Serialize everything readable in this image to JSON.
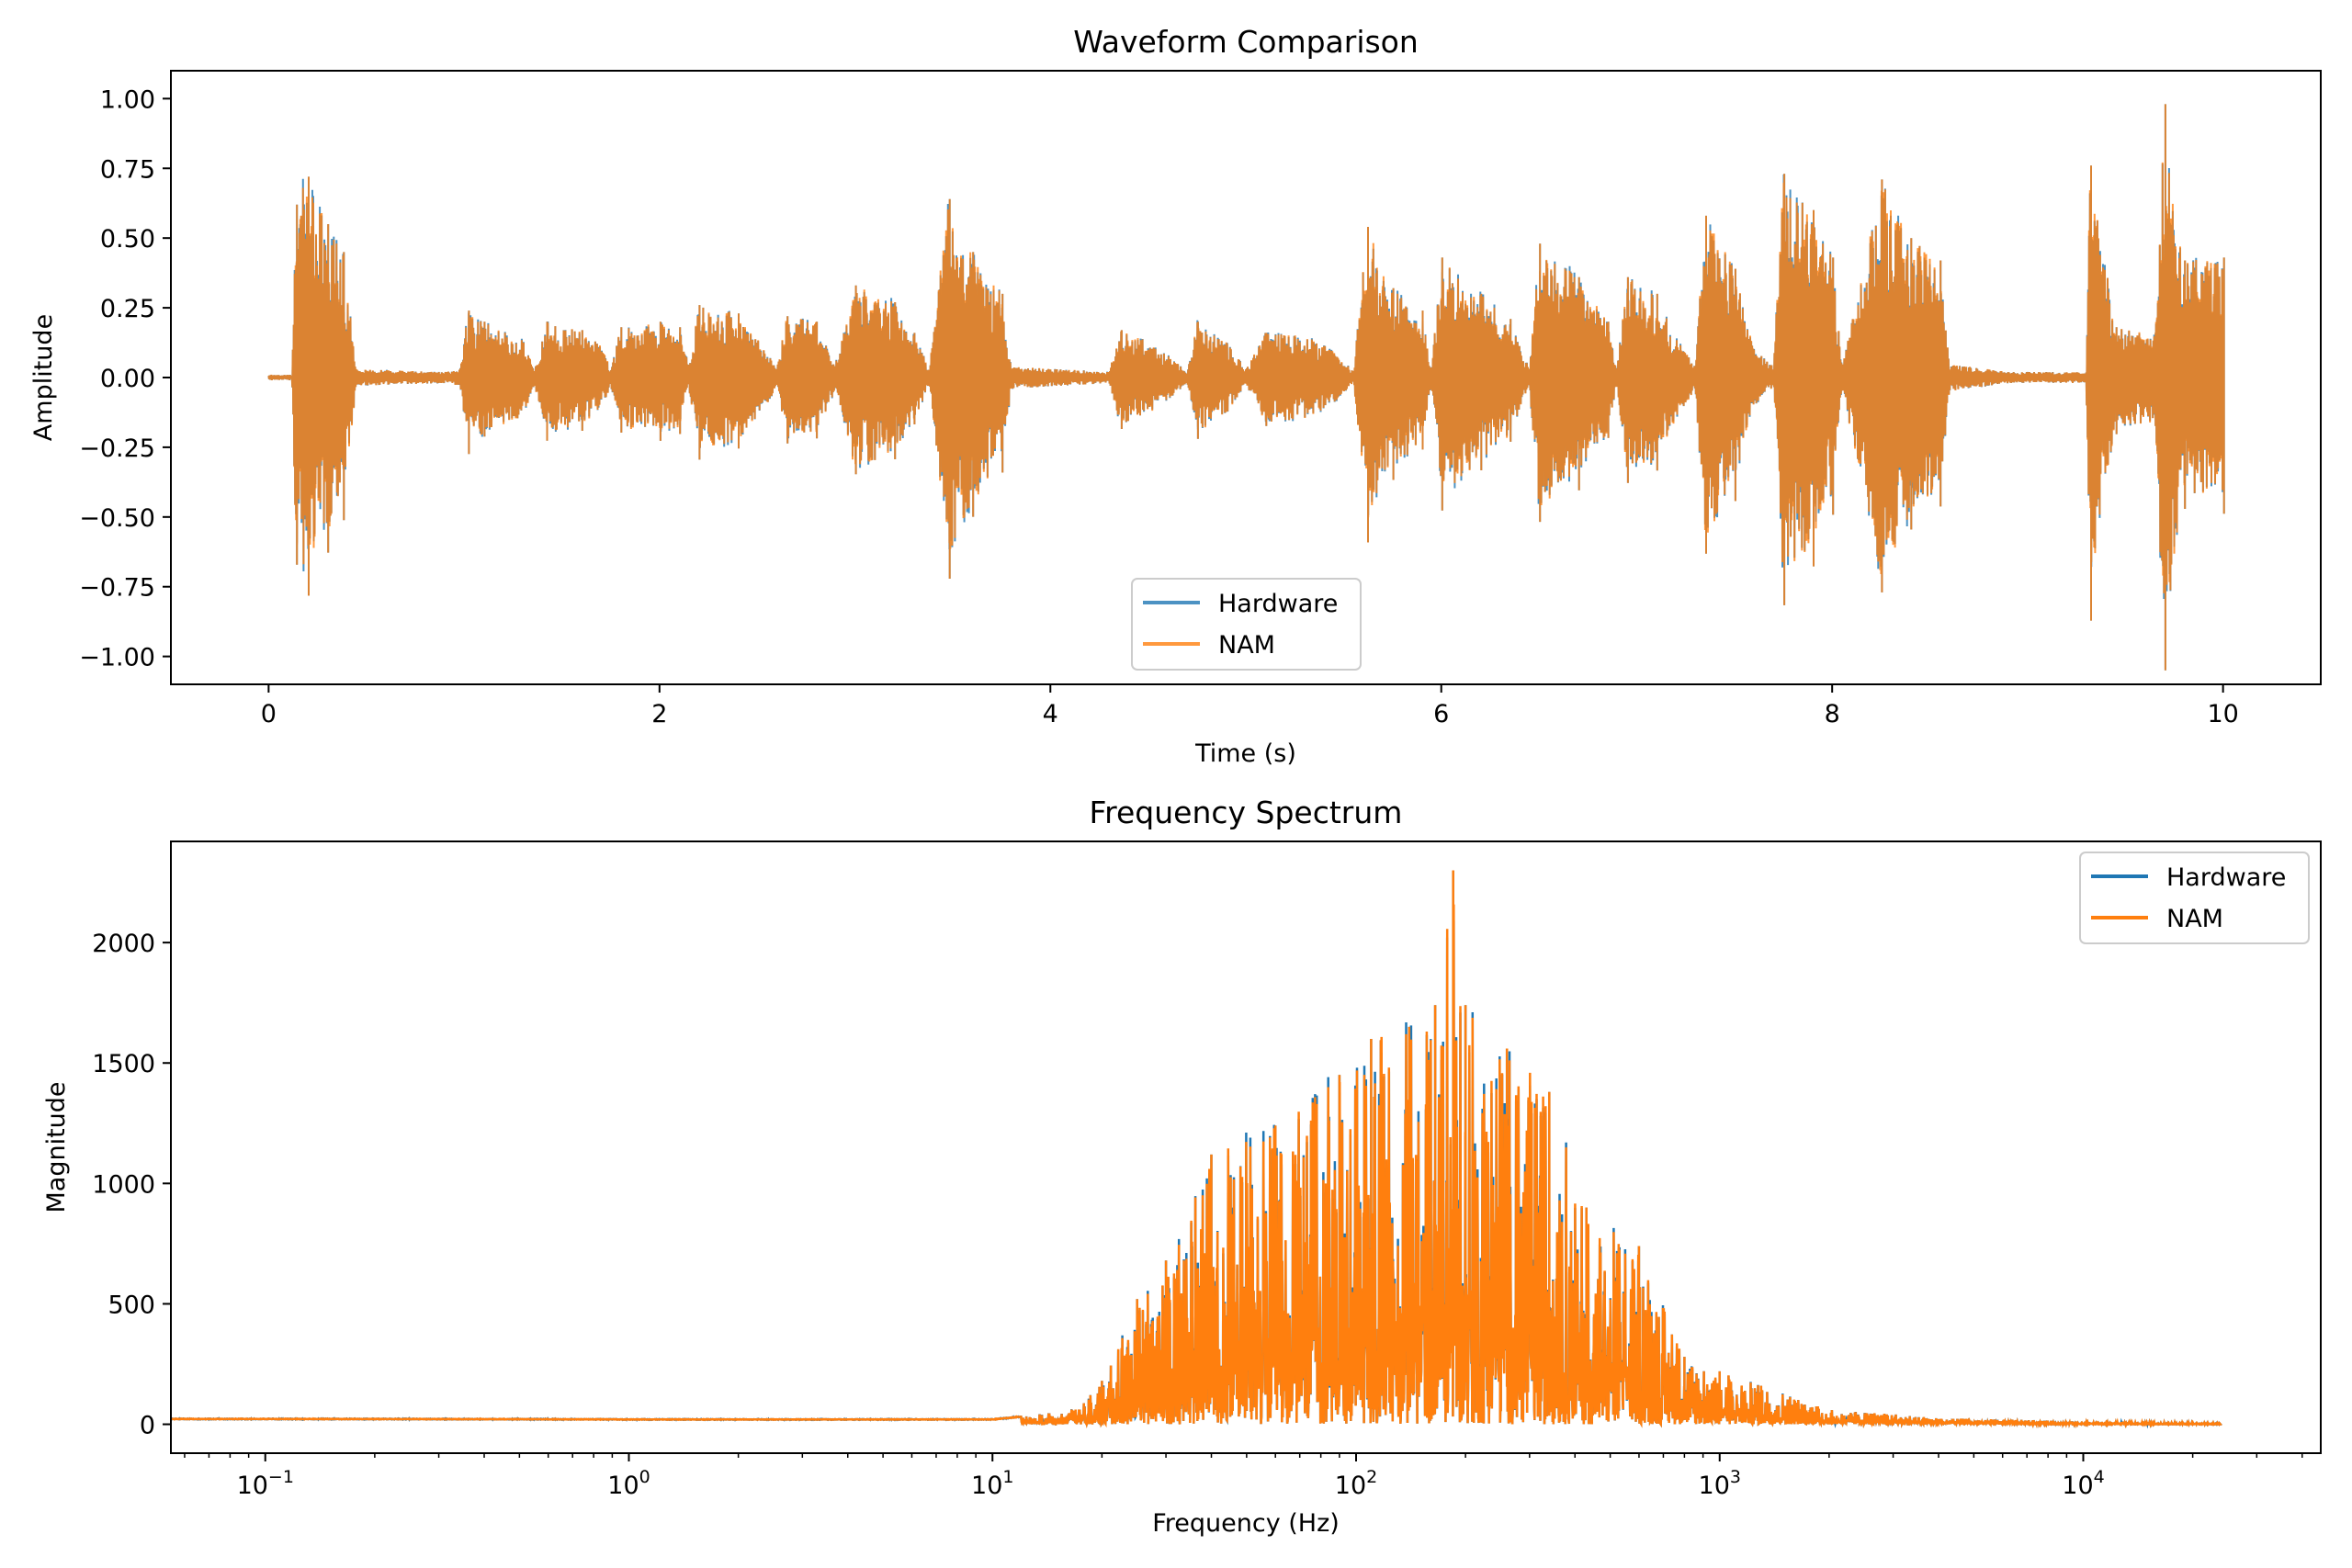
{
  "chart_data": [
    {
      "type": "line",
      "title": "Waveform Comparison",
      "xlabel": "Time (s)",
      "ylabel": "Amplitude",
      "xlim": [
        -0.5,
        10.5
      ],
      "ylim": [
        -1.1,
        1.1
      ],
      "xticks": [
        0,
        2,
        4,
        6,
        8,
        10
      ],
      "xtick_labels": [
        "0",
        "2",
        "4",
        "6",
        "8",
        "10"
      ],
      "yticks": [
        1.0,
        0.75,
        0.5,
        0.25,
        0.0,
        -0.25,
        -0.5,
        -0.75,
        -1.0
      ],
      "ytick_labels": [
        "1.00",
        "0.75",
        "0.50",
        "0.25",
        "0.00",
        "−0.25",
        "−0.50",
        "−0.75",
        "−1.00"
      ],
      "legend_position": "lower-center",
      "series": [
        {
          "name": "Hardware",
          "color": "#1f77b4",
          "style": "dense audio waveform, 0-10 s"
        },
        {
          "name": "NAM",
          "color": "#ff7f0e",
          "style": "dense audio waveform, 0-10 s"
        }
      ],
      "envelope": [
        [
          0.0,
          0.01
        ],
        [
          0.12,
          0.01
        ],
        [
          0.14,
          0.62
        ],
        [
          0.2,
          0.72
        ],
        [
          0.3,
          0.55
        ],
        [
          0.38,
          0.45
        ],
        [
          0.45,
          0.03
        ],
        [
          0.9,
          0.02
        ],
        [
          0.98,
          0.03
        ],
        [
          1.02,
          0.24
        ],
        [
          1.1,
          0.2
        ],
        [
          1.3,
          0.14
        ],
        [
          1.36,
          0.03
        ],
        [
          1.42,
          0.2
        ],
        [
          1.6,
          0.17
        ],
        [
          1.7,
          0.12
        ],
        [
          1.75,
          0.03
        ],
        [
          1.8,
          0.18
        ],
        [
          2.0,
          0.2
        ],
        [
          2.1,
          0.18
        ],
        [
          2.15,
          0.04
        ],
        [
          2.2,
          0.26
        ],
        [
          2.4,
          0.23
        ],
        [
          2.55,
          0.1
        ],
        [
          2.6,
          0.03
        ],
        [
          2.65,
          0.22
        ],
        [
          2.8,
          0.2
        ],
        [
          2.9,
          0.05
        ],
        [
          3.0,
          0.33
        ],
        [
          3.2,
          0.27
        ],
        [
          3.3,
          0.16
        ],
        [
          3.38,
          0.03
        ],
        [
          3.48,
          0.64
        ],
        [
          3.6,
          0.45
        ],
        [
          3.75,
          0.3
        ],
        [
          3.8,
          0.04
        ],
        [
          4.3,
          0.02
        ],
        [
          4.36,
          0.17
        ],
        [
          4.5,
          0.13
        ],
        [
          4.6,
          0.08
        ],
        [
          4.7,
          0.02
        ],
        [
          4.75,
          0.2
        ],
        [
          4.9,
          0.13
        ],
        [
          5.0,
          0.03
        ],
        [
          5.1,
          0.16
        ],
        [
          5.3,
          0.15
        ],
        [
          5.45,
          0.1
        ],
        [
          5.55,
          0.02
        ],
        [
          5.62,
          0.54
        ],
        [
          5.75,
          0.32
        ],
        [
          5.9,
          0.24
        ],
        [
          5.95,
          0.03
        ],
        [
          6.0,
          0.43
        ],
        [
          6.2,
          0.3
        ],
        [
          6.35,
          0.21
        ],
        [
          6.45,
          0.03
        ],
        [
          6.5,
          0.48
        ],
        [
          6.7,
          0.36
        ],
        [
          6.85,
          0.2
        ],
        [
          6.9,
          0.03
        ],
        [
          6.95,
          0.36
        ],
        [
          7.1,
          0.3
        ],
        [
          7.2,
          0.15
        ],
        [
          7.3,
          0.04
        ],
        [
          7.35,
          0.58
        ],
        [
          7.5,
          0.39
        ],
        [
          7.6,
          0.1
        ],
        [
          7.7,
          0.04
        ],
        [
          7.75,
          0.73
        ],
        [
          7.9,
          0.6
        ],
        [
          8.0,
          0.43
        ],
        [
          8.05,
          0.04
        ],
        [
          8.25,
          0.71
        ],
        [
          8.4,
          0.5
        ],
        [
          8.55,
          0.42
        ],
        [
          8.6,
          0.05
        ],
        [
          8.9,
          0.02
        ],
        [
          9.3,
          0.02
        ],
        [
          9.32,
          0.76
        ],
        [
          9.45,
          0.18
        ],
        [
          9.65,
          0.16
        ],
        [
          9.7,
          0.98
        ],
        [
          9.8,
          0.42
        ],
        [
          10.0,
          0.43
        ]
      ]
    },
    {
      "type": "line",
      "title": "Frequency Spectrum",
      "xlabel": "Frequency (Hz)",
      "ylabel": "Magnitude",
      "xscale": "log",
      "xlim": [
        0.055,
        45000
      ],
      "ylim": [
        -120,
        2420
      ],
      "xticks": [
        0.1,
        1,
        10,
        100,
        1000,
        10000
      ],
      "xtick_base": "10",
      "xtick_exponents": [
        "−1",
        "0",
        "1",
        "2",
        "3",
        "4"
      ],
      "yticks": [
        0,
        500,
        1000,
        1500,
        2000
      ],
      "ytick_labels": [
        "0",
        "500",
        "1000",
        "1500",
        "2000"
      ],
      "legend_position": "upper-right",
      "series": [
        {
          "name": "Hardware",
          "color": "#1f77b4",
          "style": "FFT magnitude, 0.055 Hz - 24 kHz"
        },
        {
          "name": "NAM",
          "color": "#ff7f0e",
          "style": "FFT magnitude, 0.055 Hz - 24 kHz"
        }
      ],
      "envelope": [
        [
          0.055,
          22
        ],
        [
          1,
          20
        ],
        [
          10,
          20
        ],
        [
          15,
          50
        ],
        [
          20,
          180
        ],
        [
          25,
          520
        ],
        [
          30,
          680
        ],
        [
          40,
          1120
        ],
        [
          60,
          1240
        ],
        [
          90,
          1450
        ],
        [
          110,
          1600
        ],
        [
          140,
          1650
        ],
        [
          165,
          1740
        ],
        [
          185,
          2300
        ],
        [
          200,
          1740
        ],
        [
          260,
          1560
        ],
        [
          340,
          1380
        ],
        [
          430,
          900
        ],
        [
          600,
          740
        ],
        [
          800,
          280
        ],
        [
          1000,
          220
        ],
        [
          1300,
          160
        ],
        [
          2000,
          60
        ],
        [
          4000,
          25
        ],
        [
          10000,
          10
        ],
        [
          24000,
          5
        ]
      ]
    }
  ]
}
